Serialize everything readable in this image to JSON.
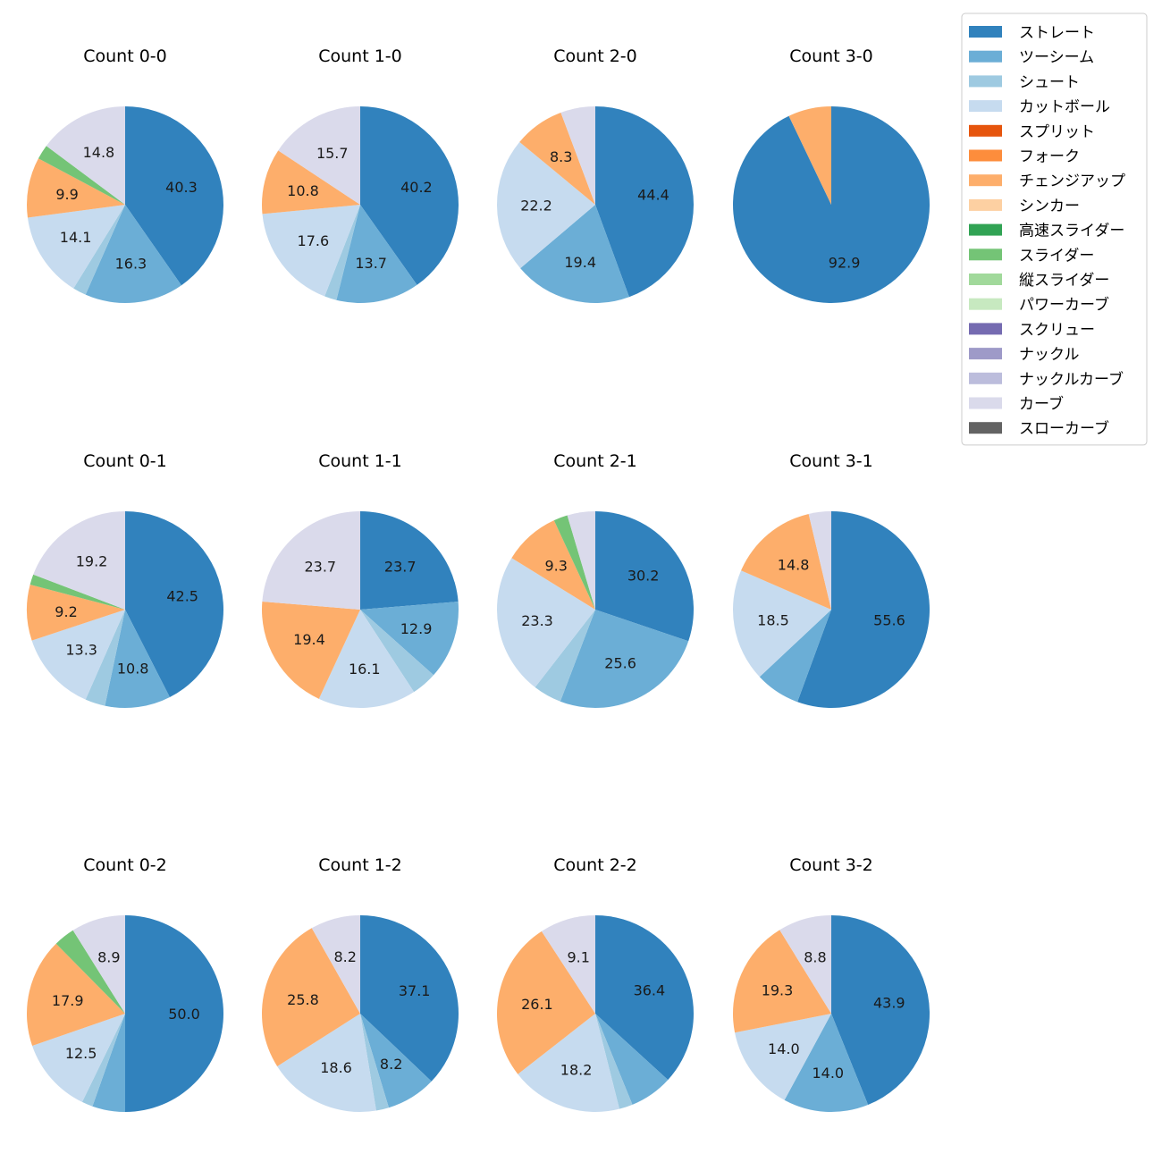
{
  "chart_data": {
    "type": "pie",
    "legend_position": "top-right",
    "legend": [
      {
        "label": "ストレート",
        "color": "#3182bd"
      },
      {
        "label": "ツーシーム",
        "color": "#6baed6"
      },
      {
        "label": "シュート",
        "color": "#9ecae1"
      },
      {
        "label": "カットボール",
        "color": "#c6dbef"
      },
      {
        "label": "スプリット",
        "color": "#e6550d"
      },
      {
        "label": "フォーク",
        "color": "#fd8d3c"
      },
      {
        "label": "チェンジアップ",
        "color": "#fdae6b"
      },
      {
        "label": "シンカー",
        "color": "#fdd0a2"
      },
      {
        "label": "高速スライダー",
        "color": "#31a354"
      },
      {
        "label": "スライダー",
        "color": "#74c476"
      },
      {
        "label": "縦スライダー",
        "color": "#a1d99b"
      },
      {
        "label": "パワーカーブ",
        "color": "#c7e9c0"
      },
      {
        "label": "スクリュー",
        "color": "#756bb1"
      },
      {
        "label": "ナックル",
        "color": "#9e9ac8"
      },
      {
        "label": "ナックルカーブ",
        "color": "#bcbddc"
      },
      {
        "label": "カーブ",
        "color": "#dadaeb"
      },
      {
        "label": "スローカーブ",
        "color": "#636363"
      }
    ],
    "charts": [
      {
        "title": "Count 0-0",
        "slices": [
          {
            "pitch": "ストレート",
            "value": 40.3,
            "label": "40.3"
          },
          {
            "pitch": "ツーシーム",
            "value": 16.3,
            "label": "16.3"
          },
          {
            "pitch": "シュート",
            "value": 2.2,
            "label": ""
          },
          {
            "pitch": "カットボール",
            "value": 14.1,
            "label": "14.1"
          },
          {
            "pitch": "チェンジアップ",
            "value": 9.9,
            "label": "9.9"
          },
          {
            "pitch": "スライダー",
            "value": 2.4,
            "label": ""
          },
          {
            "pitch": "カーブ",
            "value": 14.8,
            "label": "14.8"
          }
        ]
      },
      {
        "title": "Count 1-0",
        "slices": [
          {
            "pitch": "ストレート",
            "value": 40.2,
            "label": "40.2"
          },
          {
            "pitch": "ツーシーム",
            "value": 13.7,
            "label": "13.7"
          },
          {
            "pitch": "シュート",
            "value": 2.0,
            "label": ""
          },
          {
            "pitch": "カットボール",
            "value": 17.6,
            "label": "17.6"
          },
          {
            "pitch": "チェンジアップ",
            "value": 10.8,
            "label": "10.8"
          },
          {
            "pitch": "カーブ",
            "value": 15.7,
            "label": "15.7"
          }
        ]
      },
      {
        "title": "Count 2-0",
        "slices": [
          {
            "pitch": "ストレート",
            "value": 44.4,
            "label": "44.4"
          },
          {
            "pitch": "ツーシーム",
            "value": 19.4,
            "label": "19.4"
          },
          {
            "pitch": "カットボール",
            "value": 22.2,
            "label": "22.2"
          },
          {
            "pitch": "チェンジアップ",
            "value": 8.3,
            "label": "8.3"
          },
          {
            "pitch": "カーブ",
            "value": 5.7,
            "label": ""
          }
        ]
      },
      {
        "title": "Count 3-0",
        "slices": [
          {
            "pitch": "ストレート",
            "value": 92.9,
            "label": "92.9"
          },
          {
            "pitch": "チェンジアップ",
            "value": 7.1,
            "label": ""
          }
        ]
      },
      {
        "title": "Count 0-1",
        "slices": [
          {
            "pitch": "ストレート",
            "value": 42.5,
            "label": "42.5"
          },
          {
            "pitch": "ツーシーム",
            "value": 10.8,
            "label": "10.8"
          },
          {
            "pitch": "シュート",
            "value": 3.3,
            "label": ""
          },
          {
            "pitch": "カットボール",
            "value": 13.3,
            "label": "13.3"
          },
          {
            "pitch": "チェンジアップ",
            "value": 9.2,
            "label": "9.2"
          },
          {
            "pitch": "スライダー",
            "value": 1.7,
            "label": ""
          },
          {
            "pitch": "カーブ",
            "value": 19.2,
            "label": "19.2"
          }
        ]
      },
      {
        "title": "Count 1-1",
        "slices": [
          {
            "pitch": "ストレート",
            "value": 23.7,
            "label": "23.7"
          },
          {
            "pitch": "ツーシーム",
            "value": 12.9,
            "label": "12.9"
          },
          {
            "pitch": "シュート",
            "value": 4.2,
            "label": ""
          },
          {
            "pitch": "カットボール",
            "value": 16.1,
            "label": "16.1"
          },
          {
            "pitch": "チェンジアップ",
            "value": 19.4,
            "label": "19.4"
          },
          {
            "pitch": "カーブ",
            "value": 23.7,
            "label": "23.7"
          }
        ]
      },
      {
        "title": "Count 2-1",
        "slices": [
          {
            "pitch": "ストレート",
            "value": 30.2,
            "label": "30.2"
          },
          {
            "pitch": "ツーシーム",
            "value": 25.6,
            "label": "25.6"
          },
          {
            "pitch": "シュート",
            "value": 4.7,
            "label": ""
          },
          {
            "pitch": "カットボール",
            "value": 23.3,
            "label": "23.3"
          },
          {
            "pitch": "チェンジアップ",
            "value": 9.3,
            "label": "9.3"
          },
          {
            "pitch": "スライダー",
            "value": 2.3,
            "label": ""
          },
          {
            "pitch": "カーブ",
            "value": 4.6,
            "label": ""
          }
        ]
      },
      {
        "title": "Count 3-1",
        "slices": [
          {
            "pitch": "ストレート",
            "value": 55.6,
            "label": "55.6"
          },
          {
            "pitch": "ツーシーム",
            "value": 7.4,
            "label": ""
          },
          {
            "pitch": "カットボール",
            "value": 18.5,
            "label": "18.5"
          },
          {
            "pitch": "チェンジアップ",
            "value": 14.8,
            "label": "14.8"
          },
          {
            "pitch": "カーブ",
            "value": 3.7,
            "label": ""
          }
        ]
      },
      {
        "title": "Count 0-2",
        "slices": [
          {
            "pitch": "ストレート",
            "value": 50.0,
            "label": "50.0"
          },
          {
            "pitch": "ツーシーム",
            "value": 5.4,
            "label": ""
          },
          {
            "pitch": "シュート",
            "value": 1.8,
            "label": ""
          },
          {
            "pitch": "カットボール",
            "value": 12.5,
            "label": "12.5"
          },
          {
            "pitch": "チェンジアップ",
            "value": 17.9,
            "label": "17.9"
          },
          {
            "pitch": "スライダー",
            "value": 3.5,
            "label": ""
          },
          {
            "pitch": "カーブ",
            "value": 8.9,
            "label": "8.9"
          }
        ]
      },
      {
        "title": "Count 1-2",
        "slices": [
          {
            "pitch": "ストレート",
            "value": 37.1,
            "label": "37.1"
          },
          {
            "pitch": "ツーシーム",
            "value": 8.2,
            "label": "8.2"
          },
          {
            "pitch": "シュート",
            "value": 2.1,
            "label": ""
          },
          {
            "pitch": "カットボール",
            "value": 18.6,
            "label": "18.6"
          },
          {
            "pitch": "チェンジアップ",
            "value": 25.8,
            "label": "25.8"
          },
          {
            "pitch": "カーブ",
            "value": 8.2,
            "label": "8.2"
          }
        ]
      },
      {
        "title": "Count 2-2",
        "slices": [
          {
            "pitch": "ストレート",
            "value": 36.4,
            "label": "36.4"
          },
          {
            "pitch": "ツーシーム",
            "value": 7.0,
            "label": ""
          },
          {
            "pitch": "シュート",
            "value": 2.2,
            "label": ""
          },
          {
            "pitch": "カットボール",
            "value": 18.2,
            "label": "18.2"
          },
          {
            "pitch": "チェンジアップ",
            "value": 26.1,
            "label": "26.1"
          },
          {
            "pitch": "カーブ",
            "value": 9.1,
            "label": "9.1"
          }
        ]
      },
      {
        "title": "Count 3-2",
        "slices": [
          {
            "pitch": "ストレート",
            "value": 43.9,
            "label": "43.9"
          },
          {
            "pitch": "ツーシーム",
            "value": 14.0,
            "label": "14.0"
          },
          {
            "pitch": "カットボール",
            "value": 14.0,
            "label": "14.0"
          },
          {
            "pitch": "チェンジアップ",
            "value": 19.3,
            "label": "19.3"
          },
          {
            "pitch": "カーブ",
            "value": 8.8,
            "label": "8.8"
          }
        ]
      }
    ]
  }
}
